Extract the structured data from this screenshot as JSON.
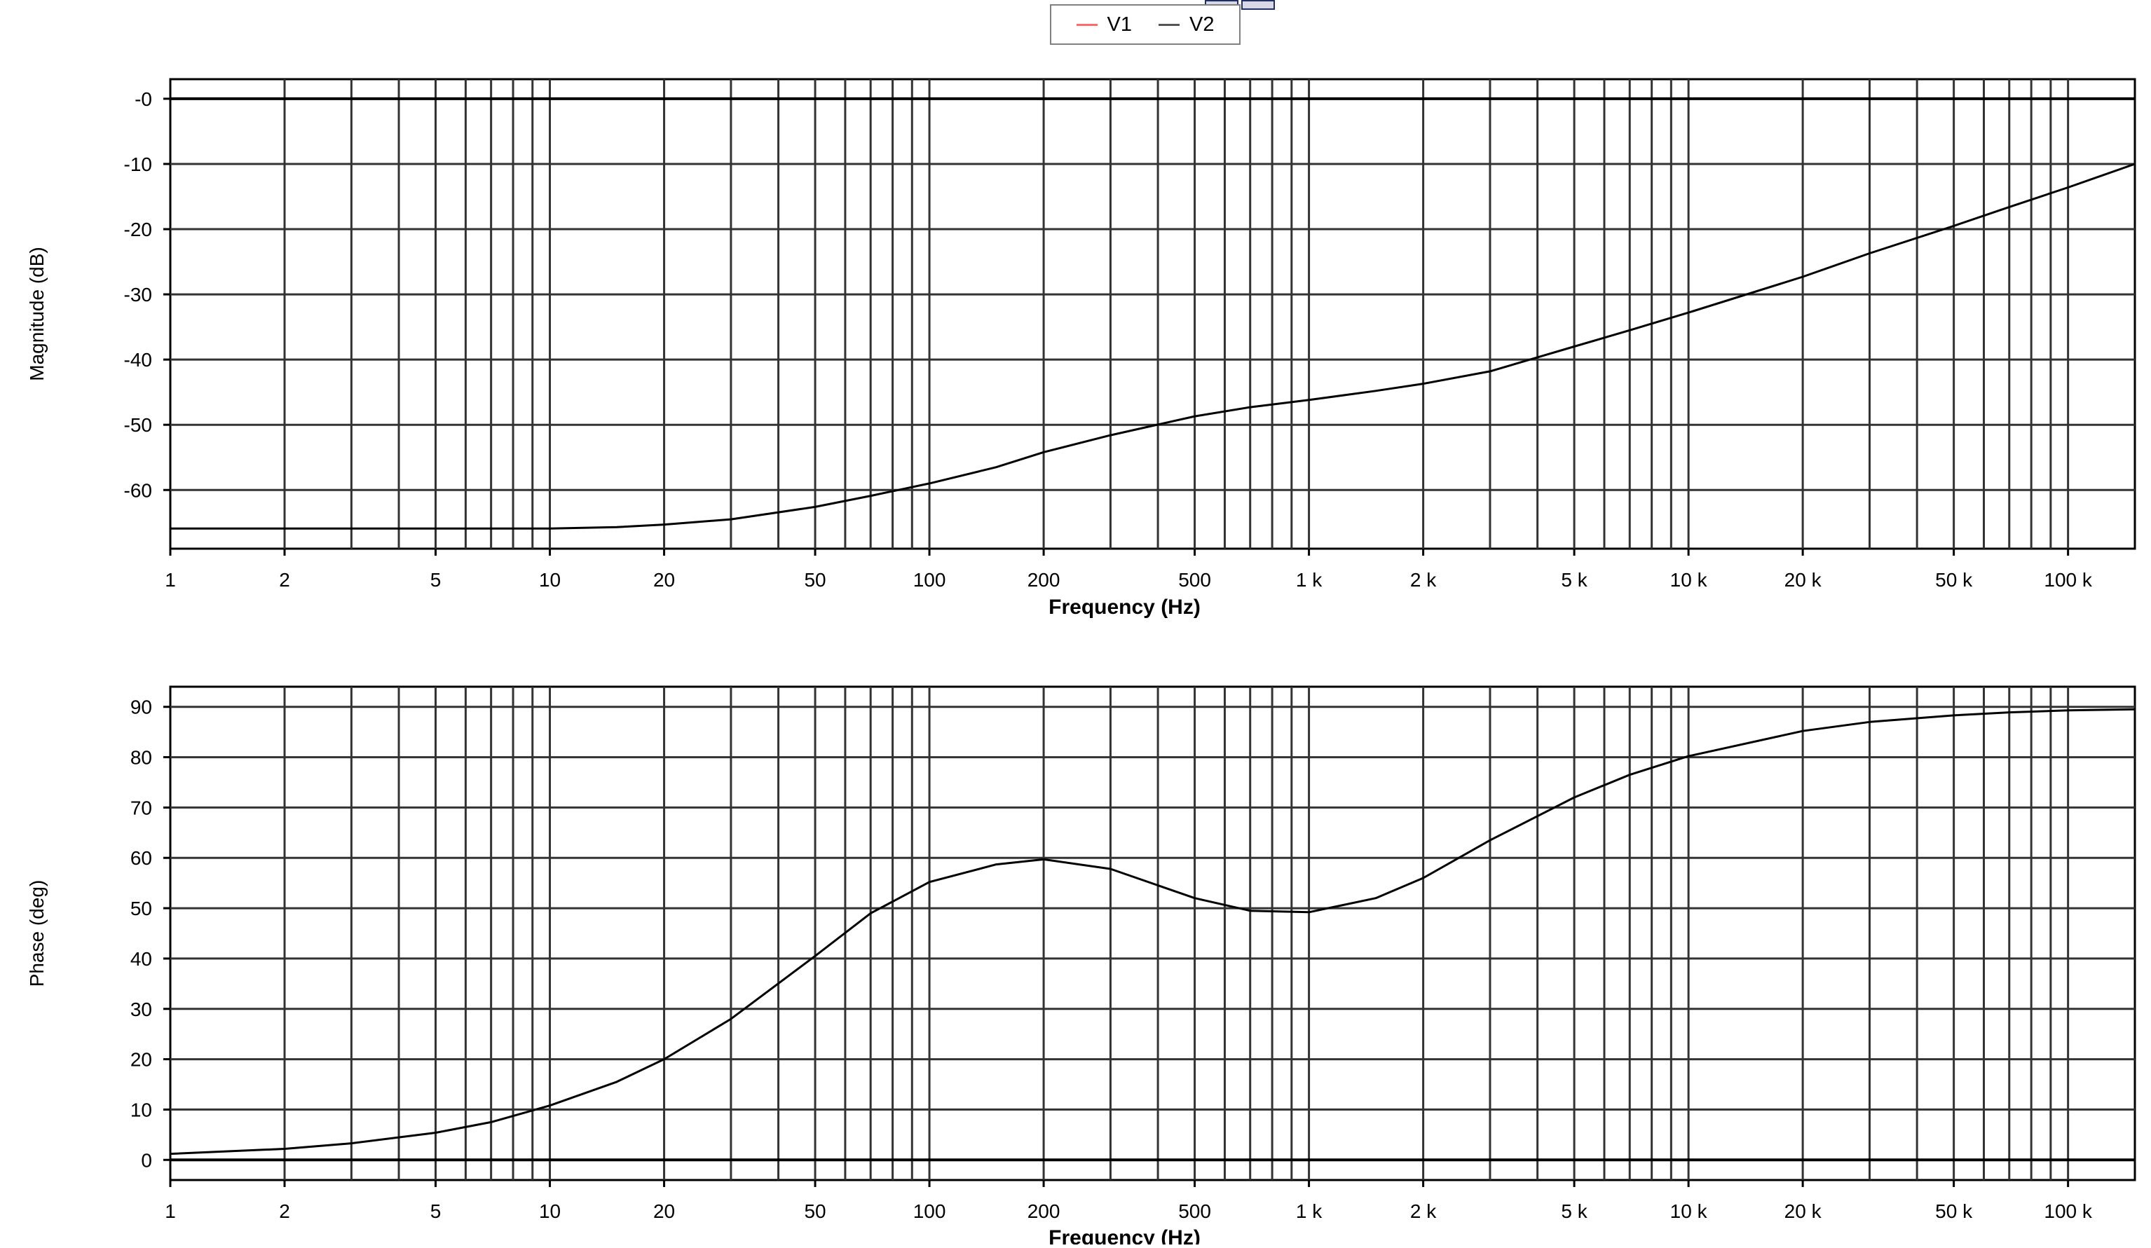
{
  "legend": {
    "items": [
      {
        "label": "V1",
        "color": "#ff6b6b"
      },
      {
        "label": "V2",
        "color": "#555555"
      }
    ]
  },
  "chart_data": [
    {
      "type": "line",
      "title": "",
      "xlabel": "Frequency (Hz)",
      "ylabel": "Magnitude (dB)",
      "xscale": "log",
      "xlim": [
        1,
        150000
      ],
      "ylim": [
        -69,
        3
      ],
      "x_ticks": [
        1,
        2,
        5,
        10,
        20,
        50,
        100,
        200,
        500,
        1000,
        2000,
        5000,
        10000,
        20000,
        50000,
        100000
      ],
      "x_tick_labels": [
        "1",
        "2",
        "5",
        "10",
        "20",
        "50",
        "100",
        "200",
        "500",
        "1 k",
        "2 k",
        "5 k",
        "10 k",
        "20 k",
        "50 k",
        "100 k"
      ],
      "y_ticks": [
        0,
        -10,
        -20,
        -30,
        -40,
        -50,
        -60
      ],
      "y_tick_labels": [
        "-0",
        "-10",
        "-20",
        "-30",
        "-40",
        "-50",
        "-60"
      ],
      "grid": true,
      "series": [
        {
          "name": "V2",
          "color": "#000000",
          "x": [
            1,
            2,
            5,
            10,
            15,
            20,
            30,
            50,
            70,
            100,
            150,
            200,
            300,
            500,
            700,
            1000,
            1500,
            2000,
            3000,
            5000,
            7000,
            10000,
            20000,
            30000,
            50000,
            70000,
            100000,
            150000
          ],
          "y": [
            -65.9,
            -65.9,
            -65.9,
            -65.9,
            -65.7,
            -65.3,
            -64.5,
            -62.6,
            -60.9,
            -59.0,
            -56.5,
            -54.2,
            -51.6,
            -48.7,
            -47.3,
            -46.2,
            -44.8,
            -43.7,
            -41.8,
            -38.0,
            -35.5,
            -32.8,
            -27.3,
            -23.7,
            -19.5,
            -16.6,
            -13.6,
            -10.0
          ]
        }
      ]
    },
    {
      "type": "line",
      "title": "",
      "xlabel": "Frequency (Hz)",
      "ylabel": "Phase (deg)",
      "xscale": "log",
      "xlim": [
        1,
        150000
      ],
      "ylim": [
        -4,
        94
      ],
      "x_ticks": [
        1,
        2,
        5,
        10,
        20,
        50,
        100,
        200,
        500,
        1000,
        2000,
        5000,
        10000,
        20000,
        50000,
        100000
      ],
      "x_tick_labels": [
        "1",
        "2",
        "5",
        "10",
        "20",
        "50",
        "100",
        "200",
        "500",
        "1 k",
        "2 k",
        "5 k",
        "10 k",
        "20 k",
        "50 k",
        "100 k"
      ],
      "y_ticks": [
        0,
        10,
        20,
        30,
        40,
        50,
        60,
        70,
        80,
        90
      ],
      "y_tick_labels": [
        "0",
        "10",
        "20",
        "30",
        "40",
        "50",
        "60",
        "70",
        "80",
        "90"
      ],
      "grid": true,
      "series": [
        {
          "name": "V2",
          "color": "#000000",
          "x": [
            1,
            2,
            3,
            5,
            7,
            10,
            15,
            20,
            30,
            50,
            70,
            100,
            150,
            200,
            300,
            500,
            700,
            1000,
            1500,
            2000,
            3000,
            5000,
            7000,
            10000,
            20000,
            30000,
            50000,
            70000,
            100000,
            150000
          ],
          "y": [
            1.2,
            2.2,
            3.3,
            5.4,
            7.5,
            10.8,
            15.5,
            20.0,
            28.0,
            40.5,
            49.0,
            55.2,
            58.7,
            59.7,
            57.8,
            52.0,
            49.5,
            49.2,
            52.0,
            56.0,
            63.5,
            72.0,
            76.5,
            80.2,
            85.2,
            87.0,
            88.3,
            88.9,
            89.3,
            89.5
          ]
        }
      ]
    }
  ]
}
